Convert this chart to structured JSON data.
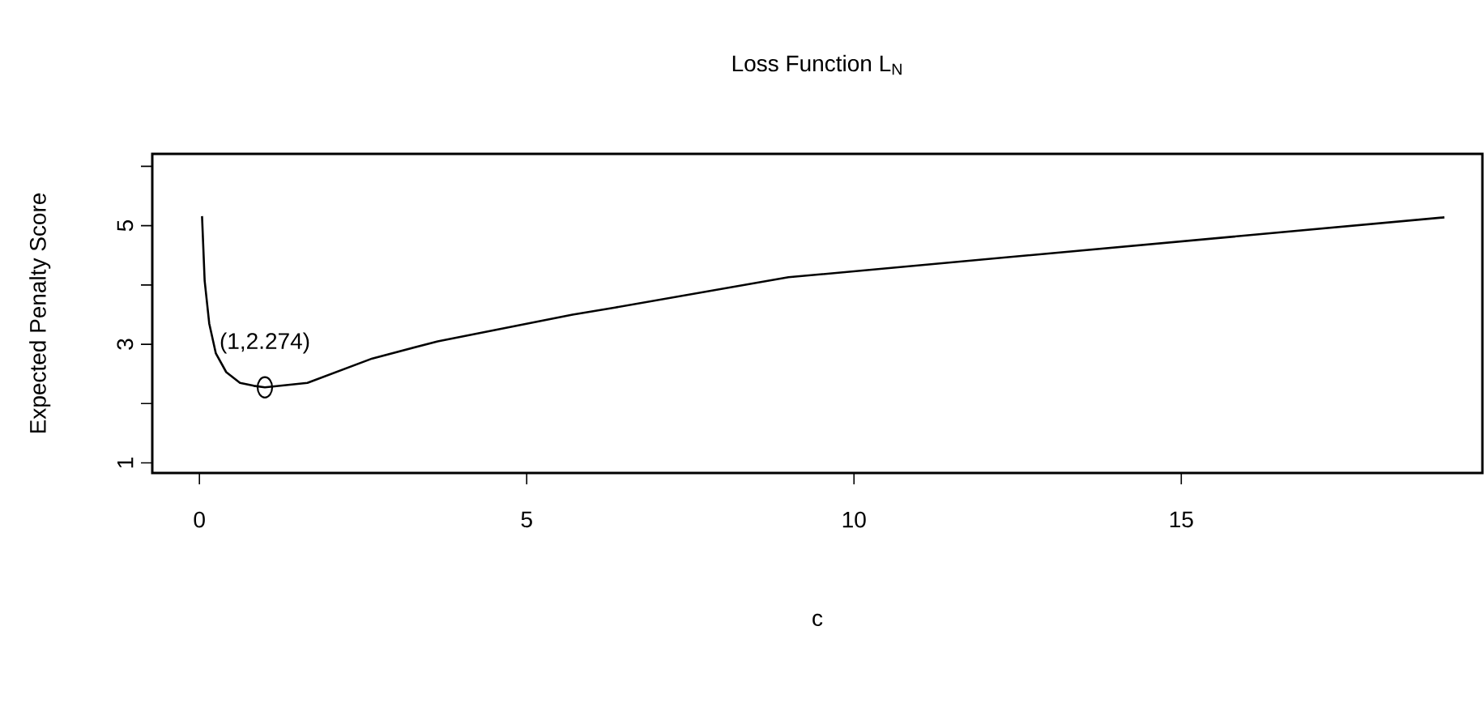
{
  "chart_data": {
    "type": "line",
    "title": "Loss Function L$_{N}$",
    "xlabel": "c",
    "ylabel": "Expected Penalty Score",
    "xlim": [
      -0.72,
      19.6
    ],
    "ylim": [
      0.83,
      6.21
    ],
    "xticks": [
      0,
      5,
      10,
      15
    ],
    "yticks": [
      1,
      {
        "value": 2,
        "label": null
      },
      3,
      {
        "value": 4,
        "label": null
      },
      5,
      {
        "value": 6,
        "label": null
      }
    ],
    "series": [
      {
        "color": "#000000",
        "line_style": "solid",
        "marker": "none",
        "x": [
          0.04,
          0.08,
          0.15,
          0.25,
          0.41,
          0.62,
          0.83,
          1,
          1.65,
          2.64,
          3.64,
          5.7,
          6.35,
          9.0,
          19.02
        ],
        "values": [
          5.16,
          4.07,
          3.35,
          2.85,
          2.53,
          2.35,
          2.3,
          2.274,
          2.35,
          2.76,
          3.05,
          3.5,
          3.62,
          4.13,
          5.14
        ]
      },
      {
        "type": "scatter",
        "color": "#000000",
        "marker": "circle",
        "x": [
          1
        ],
        "values": [
          2.274
        ]
      }
    ],
    "annotations": [
      {
        "text": "(1,2.274)",
        "x": 1,
        "y": 2.274
      }
    ]
  }
}
